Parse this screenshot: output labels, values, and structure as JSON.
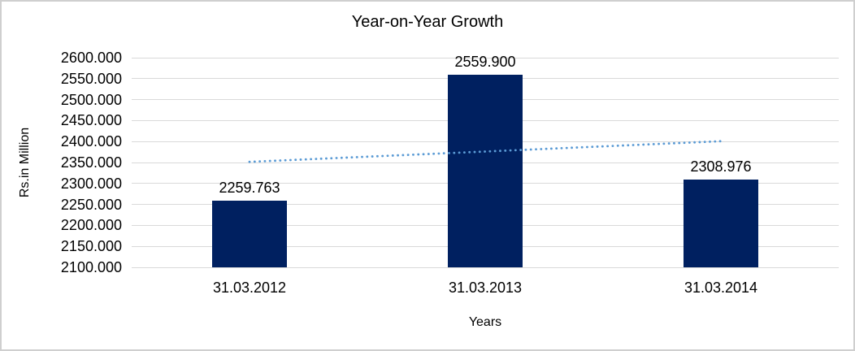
{
  "chart_data": {
    "type": "bar",
    "title": "Year-on-Year Growth",
    "xlabel": "Years",
    "ylabel": "Rs.in Million",
    "categories": [
      "31.03.2012",
      "31.03.2013",
      "31.03.2014"
    ],
    "values": [
      2259.763,
      2559.9,
      2308.976
    ],
    "value_labels": [
      "2259.763",
      "2559.900",
      "2308.976"
    ],
    "ylim": [
      2100,
      2600
    ],
    "ytick_step": 50,
    "ytick_labels": [
      "2600.000",
      "2550.000",
      "2500.000",
      "2450.000",
      "2400.000",
      "2350.000",
      "2300.000",
      "2250.000",
      "2200.000",
      "2150.000",
      "2100.000"
    ],
    "grid": true,
    "legend": false,
    "bar_color": "#002060",
    "gridline_color": "#d9d9d9",
    "trendline": {
      "type": "linear",
      "style": "dotted",
      "color": "#5B9BD5",
      "start_value": 2351.6,
      "end_value": 2400.8
    }
  }
}
